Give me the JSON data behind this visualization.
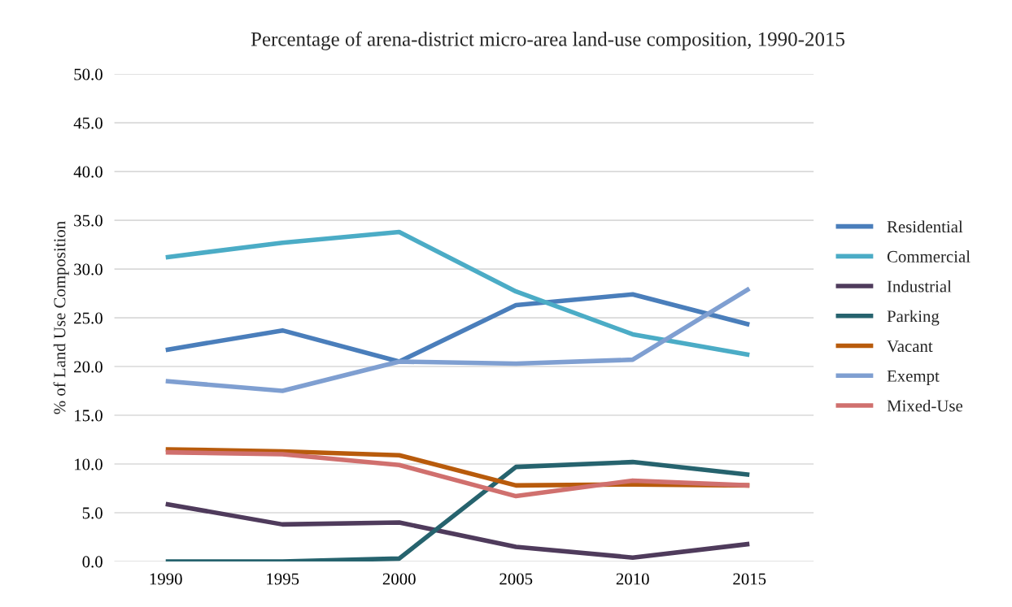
{
  "chart_data": {
    "type": "line",
    "title": "Percentage of arena-district micro-area land-use composition, 1990-2015",
    "ylabel": "% of Land Use Composition",
    "categories": [
      "1990",
      "1995",
      "2000",
      "2005",
      "2010",
      "2015"
    ],
    "series": [
      {
        "name": "Residential",
        "color": "#4a7ebb",
        "values": [
          21.7,
          23.7,
          20.5,
          26.3,
          27.4,
          24.3
        ]
      },
      {
        "name": "Commercial",
        "color": "#4bacc6",
        "values": [
          31.2,
          32.7,
          33.8,
          27.7,
          23.3,
          21.2
        ]
      },
      {
        "name": "Industrial",
        "color": "#4f3b5c",
        "values": [
          5.9,
          3.8,
          4.0,
          1.5,
          0.4,
          1.8
        ]
      },
      {
        "name": "Parking",
        "color": "#26636e",
        "values": [
          0.0,
          0.0,
          0.3,
          9.7,
          10.2,
          8.9
        ]
      },
      {
        "name": "Vacant",
        "color": "#b85b0c",
        "values": [
          11.5,
          11.3,
          10.9,
          7.8,
          7.9,
          7.8
        ]
      },
      {
        "name": "Exempt",
        "color": "#7f9fd1",
        "values": [
          18.5,
          17.5,
          20.5,
          20.3,
          20.7,
          28.0
        ]
      },
      {
        "name": "Mixed-Use",
        "color": "#d0706e",
        "values": [
          11.2,
          11.0,
          9.9,
          6.7,
          8.3,
          7.8
        ]
      }
    ],
    "ylim": [
      0,
      50
    ],
    "yticks": [
      {
        "value": 0,
        "label": "0.0"
      },
      {
        "value": 5,
        "label": "5.0"
      },
      {
        "value": 10,
        "label": "10.0"
      },
      {
        "value": 15,
        "label": "15.0"
      },
      {
        "value": 20,
        "label": "20.0"
      },
      {
        "value": 25,
        "label": "25.0"
      },
      {
        "value": 30,
        "label": "30.0"
      },
      {
        "value": 35,
        "label": "35.0"
      },
      {
        "value": 40,
        "label": "40.0"
      },
      {
        "value": 45,
        "label": "45.0"
      },
      {
        "value": 50,
        "label": "50.0"
      }
    ],
    "grid": "y",
    "legend": "right",
    "marker": "none",
    "line_style": "solid"
  }
}
